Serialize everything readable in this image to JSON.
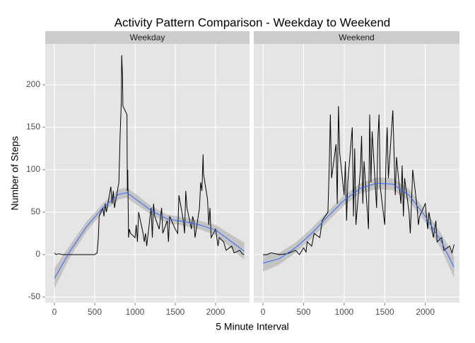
{
  "chart_data": {
    "type": "line",
    "title": "Activity Pattern Comparison - Weekday to Weekend",
    "xlabel": "5 Minute Interval",
    "ylabel": "Number of Steps",
    "xlim": [
      -114,
      2421
    ],
    "ylim": [
      -56.7,
      248.3
    ],
    "xticks": [
      0,
      500,
      1000,
      1500,
      2000
    ],
    "yticks": [
      -50,
      0,
      50,
      100,
      150,
      200
    ],
    "grid": true,
    "facets": [
      {
        "name": "Weekday",
        "color": "#000000",
        "x": [
          0,
          20,
          50,
          100,
          200,
          300,
          400,
          500,
          530,
          545,
          555,
          600,
          615,
          630,
          645,
          700,
          715,
          730,
          745,
          800,
          815,
          830,
          835,
          845,
          850,
          900,
          905,
          910,
          920,
          930,
          945,
          1000,
          1015,
          1030,
          1045,
          1100,
          1115,
          1130,
          1145,
          1200,
          1215,
          1230,
          1245,
          1300,
          1330,
          1345,
          1400,
          1415,
          1430,
          1500,
          1530,
          1545,
          1600,
          1615,
          1630,
          1645,
          1700,
          1715,
          1730,
          1745,
          1800,
          1815,
          1830,
          1845,
          1850,
          1900,
          1915,
          1930,
          1945,
          2000,
          2030,
          2045,
          2100,
          2130,
          2200,
          2230,
          2300,
          2330,
          2355
        ],
        "values": [
          2,
          0,
          1,
          0,
          0,
          0,
          0,
          0,
          2,
          20,
          45,
          55,
          45,
          60,
          50,
          80,
          60,
          75,
          55,
          85,
          140,
          180,
          235,
          210,
          175,
          165,
          75,
          100,
          20,
          30,
          25,
          20,
          35,
          15,
          50,
          25,
          15,
          25,
          10,
          55,
          20,
          60,
          45,
          30,
          55,
          25,
          40,
          15,
          45,
          30,
          25,
          70,
          40,
          25,
          75,
          55,
          30,
          45,
          40,
          20,
          55,
          85,
          75,
          118,
          95,
          65,
          35,
          55,
          20,
          30,
          10,
          20,
          15,
          5,
          10,
          2,
          5,
          1,
          0
        ],
        "smooth": {
          "color": "#3366ff",
          "band_color": "#999999",
          "x": [
            0,
            200,
            400,
            600,
            800,
            900,
            1000,
            1200,
            1400,
            1600,
            1800,
            2000,
            2200,
            2355
          ],
          "values": [
            -28,
            5,
            33,
            55,
            71,
            73,
            66,
            52,
            42,
            39,
            35,
            29,
            15,
            4
          ],
          "lower": [
            -40,
            -2,
            27,
            50,
            65,
            67,
            60,
            47,
            37,
            34,
            30,
            23,
            7,
            -6
          ],
          "upper": [
            -16,
            12,
            39,
            60,
            77,
            79,
            72,
            57,
            47,
            44,
            40,
            35,
            23,
            14
          ]
        }
      },
      {
        "name": "Weekend",
        "color": "#000000",
        "x": [
          0,
          50,
          100,
          200,
          300,
          400,
          450,
          500,
          530,
          545,
          600,
          630,
          700,
          730,
          800,
          815,
          830,
          845,
          900,
          915,
          930,
          945,
          1000,
          1015,
          1030,
          1045,
          1100,
          1115,
          1130,
          1145,
          1200,
          1215,
          1230,
          1245,
          1300,
          1315,
          1330,
          1345,
          1400,
          1415,
          1430,
          1445,
          1500,
          1515,
          1530,
          1545,
          1600,
          1615,
          1630,
          1645,
          1700,
          1715,
          1730,
          1745,
          1800,
          1815,
          1830,
          1845,
          1900,
          1915,
          1930,
          2000,
          2030,
          2045,
          2100,
          2130,
          2145,
          2200,
          2230,
          2300,
          2330,
          2355
        ],
        "values": [
          0,
          0,
          2,
          0,
          1,
          5,
          0,
          8,
          3,
          15,
          10,
          25,
          20,
          40,
          50,
          100,
          165,
          90,
          130,
          60,
          175,
          120,
          70,
          110,
          40,
          85,
          150,
          45,
          125,
          35,
          100,
          140,
          60,
          110,
          30,
          165,
          85,
          145,
          55,
          135,
          165,
          80,
          35,
          110,
          150,
          90,
          170,
          120,
          70,
          115,
          60,
          105,
          45,
          90,
          50,
          25,
          60,
          100,
          55,
          35,
          45,
          60,
          30,
          50,
          20,
          40,
          15,
          20,
          5,
          10,
          2,
          12
        ],
        "smooth": {
          "color": "#3366ff",
          "band_color": "#999999",
          "x": [
            0,
            200,
            400,
            600,
            800,
            1000,
            1200,
            1400,
            1600,
            1800,
            2000,
            2200,
            2355
          ],
          "values": [
            -10,
            -5,
            8,
            25,
            45,
            64,
            78,
            84,
            83,
            70,
            45,
            15,
            -15
          ],
          "lower": [
            -20,
            -12,
            2,
            19,
            39,
            58,
            72,
            77,
            76,
            63,
            38,
            6,
            -28
          ],
          "upper": [
            0,
            2,
            14,
            31,
            51,
            70,
            84,
            91,
            90,
            77,
            52,
            24,
            -2
          ]
        }
      }
    ]
  }
}
